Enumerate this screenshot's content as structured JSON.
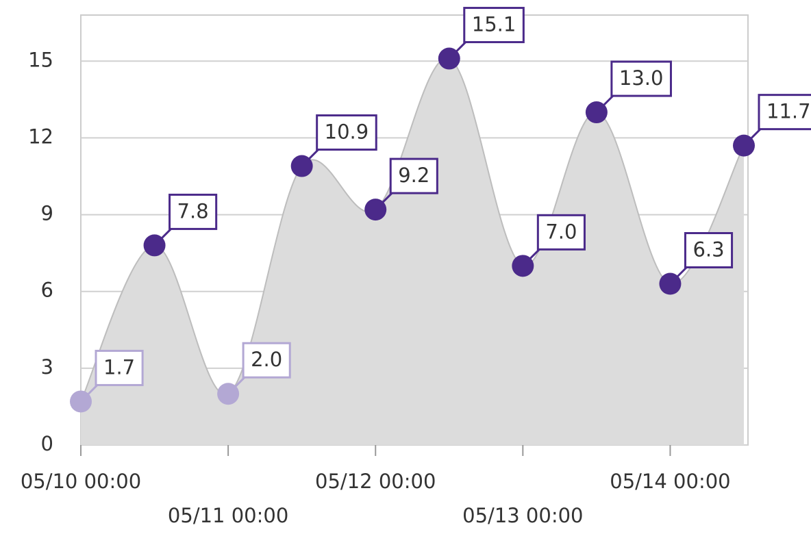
{
  "chart_data": {
    "type": "area",
    "x": [
      "05/10 00:00",
      "05/10 12:00",
      "05/11 00:00",
      "05/11 12:00",
      "05/12 00:00",
      "05/12 12:00",
      "05/13 00:00",
      "05/13 12:00",
      "05/14 00:00",
      "05/14 12:00"
    ],
    "values": [
      1.7,
      7.8,
      2.0,
      10.9,
      9.2,
      15.1,
      7.0,
      13.0,
      6.3,
      11.7
    ],
    "value_labels": [
      "1.7",
      "7.8",
      "2.0",
      "10.9",
      "9.2",
      "15.1",
      "7.0",
      "13.0",
      "6.3",
      "11.7"
    ],
    "point_colors": [
      "#b3a8d4",
      "#4b2a8a",
      "#b3a8d4",
      "#4b2a8a",
      "#4b2a8a",
      "#4b2a8a",
      "#4b2a8a",
      "#4b2a8a",
      "#4b2a8a",
      "#4b2a8a"
    ],
    "area_color": "#dcdcdc",
    "xlim": [
      "05/10 00:00",
      "05/14 12:00"
    ],
    "xticks": [
      "05/10 00:00",
      "05/11 00:00",
      "05/12 00:00",
      "05/13 00:00",
      "05/14 00:00"
    ],
    "ylim": [
      0,
      16.8
    ],
    "yticks": [
      0,
      3,
      6,
      9,
      12,
      15
    ],
    "grid": true
  }
}
